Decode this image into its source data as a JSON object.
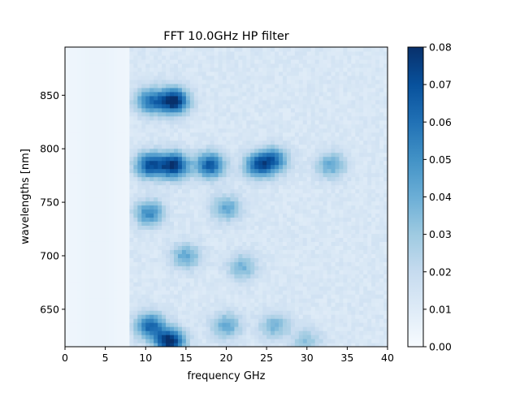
{
  "chart_data": {
    "type": "heatmap",
    "title": "FFT 10.0GHz HP filter",
    "xlabel": "frequency GHz",
    "ylabel": "wavelengths [nm]",
    "xlim": [
      0,
      40
    ],
    "ylim": [
      615,
      895
    ],
    "xticks": [
      0,
      5,
      10,
      15,
      20,
      25,
      30,
      35,
      40
    ],
    "yticks": [
      650,
      700,
      750,
      800,
      850
    ],
    "colormap": "Blues",
    "colorbar": {
      "range": [
        0.0,
        0.08
      ],
      "ticks": [
        "0.00",
        "0.01",
        "0.02",
        "0.03",
        "0.04",
        "0.05",
        "0.06",
        "0.07",
        "0.08"
      ]
    },
    "background_level": 0.012,
    "features": [
      {
        "x": 13.5,
        "y": 845,
        "value": 0.07
      },
      {
        "x": 10.5,
        "y": 845,
        "value": 0.045
      },
      {
        "x": 13.5,
        "y": 785,
        "value": 0.065
      },
      {
        "x": 18.0,
        "y": 785,
        "value": 0.055
      },
      {
        "x": 24.0,
        "y": 785,
        "value": 0.05
      },
      {
        "x": 10.5,
        "y": 785,
        "value": 0.055
      },
      {
        "x": 10.5,
        "y": 740,
        "value": 0.04
      },
      {
        "x": 20.0,
        "y": 745,
        "value": 0.03
      },
      {
        "x": 26.0,
        "y": 790,
        "value": 0.04
      },
      {
        "x": 33.0,
        "y": 785,
        "value": 0.03
      },
      {
        "x": 13.0,
        "y": 620,
        "value": 0.07
      },
      {
        "x": 10.5,
        "y": 635,
        "value": 0.05
      },
      {
        "x": 20.0,
        "y": 635,
        "value": 0.03
      },
      {
        "x": 26.0,
        "y": 635,
        "value": 0.025
      },
      {
        "x": 15.0,
        "y": 700,
        "value": 0.03
      },
      {
        "x": 22.0,
        "y": 690,
        "value": 0.025
      },
      {
        "x": 30.0,
        "y": 620,
        "value": 0.02
      }
    ]
  }
}
